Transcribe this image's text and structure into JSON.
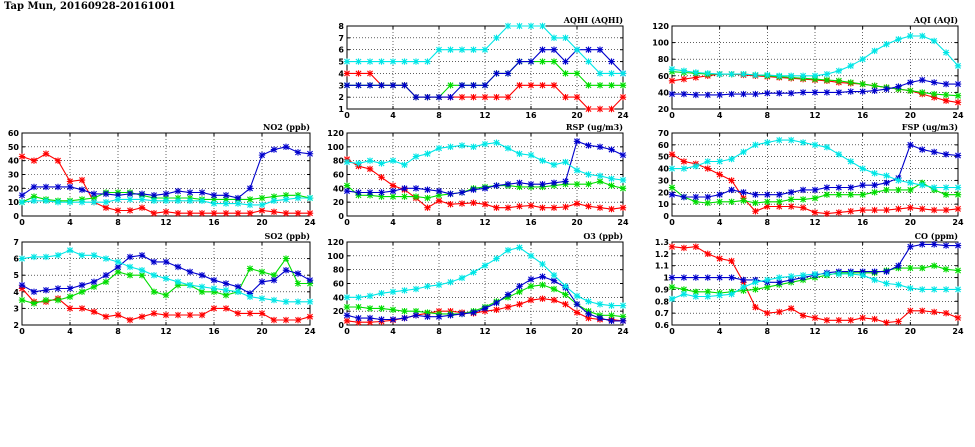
{
  "page": {
    "title": "Tap Mun, 20160928-20161001"
  },
  "series_colors": {
    "red": "#ff0000",
    "green": "#00dd00",
    "blue": "#0000cc",
    "cyan": "#00e6e6"
  },
  "chart_data": [
    {
      "id": "aqhi",
      "type": "line",
      "title": "AQHI (AQHI)",
      "xlim": [
        0,
        24
      ],
      "xticks": [
        0,
        4,
        8,
        12,
        16,
        20,
        24
      ],
      "ylim": [
        1,
        8
      ],
      "yticks": [
        1,
        2,
        3,
        4,
        5,
        6,
        7,
        8
      ],
      "grid": true,
      "series": [
        {
          "color": "red",
          "values": [
            4,
            4,
            4,
            3,
            3,
            3,
            2,
            2,
            2,
            2,
            2,
            2,
            2,
            2,
            2,
            3,
            3,
            3,
            3,
            2,
            2,
            1,
            1,
            1,
            2
          ]
        },
        {
          "color": "green",
          "values": [
            3,
            3,
            3,
            3,
            3,
            3,
            2,
            2,
            2,
            3,
            3,
            3,
            3,
            4,
            4,
            5,
            5,
            5,
            5,
            4,
            4,
            3,
            3,
            3,
            3
          ]
        },
        {
          "color": "blue",
          "values": [
            3,
            3,
            3,
            3,
            3,
            3,
            2,
            2,
            2,
            2,
            3,
            3,
            3,
            4,
            4,
            5,
            5,
            6,
            6,
            5,
            6,
            6,
            6,
            5,
            4
          ]
        },
        {
          "color": "cyan",
          "values": [
            5,
            5,
            5,
            5,
            5,
            5,
            5,
            5,
            6,
            6,
            6,
            6,
            6,
            7,
            8,
            8,
            8,
            8,
            7,
            7,
            6,
            5,
            4,
            4,
            4
          ]
        }
      ]
    },
    {
      "id": "aqi",
      "type": "line",
      "title": "AQI (AQI)",
      "xlim": [
        0,
        24
      ],
      "xticks": [
        0,
        4,
        8,
        12,
        16,
        20,
        24
      ],
      "ylim": [
        20,
        120
      ],
      "yticks": [
        20,
        40,
        60,
        80,
        100,
        120
      ],
      "grid": true,
      "series": [
        {
          "color": "red",
          "values": [
            54,
            56,
            58,
            60,
            62,
            62,
            61,
            60,
            59,
            58,
            57,
            56,
            55,
            54,
            52,
            51,
            50,
            48,
            46,
            44,
            42,
            38,
            34,
            30,
            28
          ]
        },
        {
          "color": "green",
          "values": [
            65,
            64,
            63,
            62,
            62,
            62,
            62,
            61,
            60,
            59,
            58,
            57,
            56,
            55,
            54,
            52,
            50,
            48,
            46,
            44,
            42,
            40,
            38,
            37,
            36
          ]
        },
        {
          "color": "blue",
          "values": [
            38,
            38,
            37,
            37,
            37,
            38,
            38,
            38,
            39,
            39,
            39,
            40,
            40,
            40,
            40,
            41,
            41,
            42,
            44,
            47,
            52,
            55,
            52,
            50,
            50
          ]
        },
        {
          "color": "cyan",
          "values": [
            68,
            66,
            64,
            63,
            62,
            62,
            62,
            61,
            61,
            60,
            60,
            60,
            60,
            62,
            66,
            72,
            80,
            90,
            98,
            104,
            108,
            108,
            102,
            88,
            72
          ]
        }
      ]
    },
    {
      "id": "no2",
      "type": "line",
      "title": "NO2 (ppb)",
      "xlim": [
        0,
        24
      ],
      "xticks": [
        0,
        4,
        8,
        12,
        16,
        20,
        24
      ],
      "ylim": [
        0,
        60
      ],
      "yticks": [
        0,
        10,
        20,
        30,
        40,
        50,
        60
      ],
      "grid": true,
      "series": [
        {
          "color": "red",
          "values": [
            43,
            40,
            45,
            40,
            25,
            26,
            10,
            6,
            4,
            4,
            6,
            2,
            3,
            2,
            2,
            2,
            2,
            2,
            2,
            2,
            4,
            3,
            2,
            2,
            2
          ]
        },
        {
          "color": "green",
          "values": [
            10,
            14,
            12,
            11,
            11,
            12,
            13,
            17,
            17,
            17,
            15,
            13,
            13,
            13,
            13,
            12,
            12,
            12,
            12,
            12,
            13,
            14,
            15,
            15,
            13
          ]
        },
        {
          "color": "blue",
          "values": [
            15,
            21,
            21,
            21,
            21,
            19,
            16,
            16,
            15,
            16,
            16,
            15,
            16,
            18,
            17,
            17,
            15,
            15,
            13,
            20,
            44,
            48,
            50,
            46,
            45
          ]
        },
        {
          "color": "cyan",
          "values": [
            10,
            11,
            11,
            10,
            10,
            10,
            10,
            10,
            12,
            12,
            12,
            11,
            11,
            11,
            11,
            11,
            9,
            9,
            9,
            8,
            8,
            11,
            12,
            13,
            13
          ]
        }
      ]
    },
    {
      "id": "rsp",
      "type": "line",
      "title": "RSP (ug/m3)",
      "xlim": [
        0,
        24
      ],
      "xticks": [
        0,
        4,
        8,
        12,
        16,
        20,
        24
      ],
      "ylim": [
        0,
        120
      ],
      "yticks": [
        0,
        20,
        40,
        60,
        80,
        100,
        120
      ],
      "grid": true,
      "series": [
        {
          "color": "red",
          "values": [
            82,
            72,
            68,
            56,
            44,
            38,
            26,
            12,
            22,
            17,
            18,
            19,
            17,
            12,
            12,
            14,
            15,
            12,
            12,
            13,
            18,
            14,
            12,
            10,
            12
          ]
        },
        {
          "color": "green",
          "values": [
            44,
            30,
            30,
            28,
            28,
            28,
            28,
            26,
            30,
            32,
            34,
            40,
            42,
            44,
            44,
            42,
            42,
            42,
            44,
            46,
            46,
            46,
            50,
            44,
            40
          ]
        },
        {
          "color": "blue",
          "values": [
            36,
            34,
            34,
            34,
            36,
            40,
            40,
            38,
            36,
            32,
            34,
            38,
            40,
            44,
            46,
            48,
            46,
            46,
            48,
            50,
            108,
            102,
            100,
            96,
            88
          ]
        },
        {
          "color": "cyan",
          "values": [
            78,
            76,
            80,
            76,
            80,
            74,
            86,
            90,
            98,
            100,
            102,
            100,
            104,
            106,
            98,
            90,
            88,
            80,
            74,
            78,
            66,
            60,
            58,
            54,
            52
          ]
        }
      ]
    },
    {
      "id": "fsp",
      "type": "line",
      "title": "FSP (ug/m3)",
      "xlim": [
        0,
        24
      ],
      "xticks": [
        0,
        4,
        8,
        12,
        16,
        20,
        24
      ],
      "ylim": [
        0,
        70
      ],
      "yticks": [
        0,
        10,
        20,
        30,
        40,
        50,
        60,
        70
      ],
      "grid": true,
      "series": [
        {
          "color": "red",
          "values": [
            52,
            46,
            44,
            40,
            35,
            30,
            15,
            4,
            8,
            8,
            8,
            7,
            3,
            2,
            3,
            4,
            5,
            5,
            5,
            6,
            7,
            6,
            5,
            5,
            6
          ]
        },
        {
          "color": "green",
          "values": [
            24,
            16,
            12,
            11,
            12,
            12,
            13,
            11,
            12,
            12,
            14,
            14,
            15,
            18,
            18,
            18,
            18,
            20,
            22,
            22,
            22,
            28,
            22,
            18,
            18
          ]
        },
        {
          "color": "blue",
          "values": [
            18,
            16,
            16,
            16,
            18,
            22,
            20,
            18,
            18,
            18,
            20,
            22,
            22,
            24,
            24,
            24,
            26,
            26,
            28,
            32,
            60,
            56,
            54,
            52,
            51
          ]
        },
        {
          "color": "cyan",
          "values": [
            40,
            40,
            42,
            46,
            46,
            48,
            54,
            60,
            62,
            64,
            64,
            62,
            60,
            58,
            52,
            46,
            40,
            36,
            34,
            30,
            28,
            26,
            24,
            24,
            24
          ]
        }
      ]
    },
    {
      "id": "so2",
      "type": "line",
      "title": "SO2 (ppb)",
      "xlim": [
        0,
        24
      ],
      "xticks": [
        0,
        4,
        8,
        12,
        16,
        20,
        24
      ],
      "ylim": [
        2,
        7
      ],
      "yticks": [
        2,
        3,
        4,
        5,
        6,
        7
      ],
      "grid": true,
      "series": [
        {
          "color": "red",
          "values": [
            4.2,
            3.4,
            3.4,
            3.6,
            3.0,
            3.0,
            2.8,
            2.5,
            2.6,
            2.3,
            2.5,
            2.7,
            2.6,
            2.6,
            2.6,
            2.6,
            3.0,
            3.0,
            2.7,
            2.7,
            2.7,
            2.3,
            2.3,
            2.3,
            2.5
          ]
        },
        {
          "color": "green",
          "values": [
            3.5,
            3.3,
            3.5,
            3.5,
            3.7,
            4.0,
            4.3,
            4.6,
            5.2,
            5.0,
            5.0,
            4.0,
            3.8,
            4.4,
            4.4,
            4.0,
            4.0,
            3.8,
            4.0,
            5.4,
            5.2,
            5.0,
            6.0,
            4.5,
            4.5
          ]
        },
        {
          "color": "blue",
          "values": [
            4.4,
            4.0,
            4.1,
            4.2,
            4.2,
            4.4,
            4.6,
            5.0,
            5.5,
            6.1,
            6.2,
            5.8,
            5.8,
            5.5,
            5.2,
            5.0,
            4.7,
            4.5,
            4.3,
            3.9,
            4.6,
            4.7,
            5.3,
            5.1,
            4.7
          ]
        },
        {
          "color": "cyan",
          "values": [
            6.0,
            6.1,
            6.1,
            6.2,
            6.5,
            6.2,
            6.2,
            6.0,
            5.8,
            5.5,
            5.3,
            5.0,
            4.8,
            4.6,
            4.4,
            4.3,
            4.2,
            4.1,
            4.0,
            3.7,
            3.6,
            3.5,
            3.4,
            3.4,
            3.4
          ]
        }
      ]
    },
    {
      "id": "o3",
      "type": "line",
      "title": "O3 (ppb)",
      "xlim": [
        0,
        24
      ],
      "xticks": [
        0,
        4,
        8,
        12,
        16,
        20,
        24
      ],
      "ylim": [
        0,
        120
      ],
      "yticks": [
        0,
        20,
        40,
        60,
        80,
        100,
        120
      ],
      "grid": true,
      "series": [
        {
          "color": "red",
          "values": [
            6,
            4,
            4,
            5,
            7,
            10,
            14,
            17,
            20,
            20,
            18,
            17,
            20,
            22,
            26,
            30,
            36,
            38,
            36,
            30,
            18,
            10,
            8,
            8,
            6
          ]
        },
        {
          "color": "green",
          "values": [
            26,
            26,
            24,
            24,
            22,
            20,
            20,
            18,
            16,
            16,
            16,
            20,
            26,
            34,
            40,
            48,
            56,
            58,
            52,
            44,
            30,
            20,
            14,
            14,
            12
          ]
        },
        {
          "color": "blue",
          "values": [
            14,
            10,
            10,
            8,
            8,
            10,
            14,
            12,
            12,
            14,
            16,
            18,
            24,
            32,
            44,
            56,
            66,
            70,
            64,
            54,
            30,
            16,
            10,
            6,
            6
          ]
        },
        {
          "color": "cyan",
          "values": [
            40,
            40,
            42,
            46,
            48,
            50,
            52,
            56,
            58,
            62,
            68,
            76,
            86,
            96,
            108,
            112,
            100,
            88,
            72,
            56,
            42,
            34,
            30,
            28,
            28
          ]
        }
      ]
    },
    {
      "id": "co",
      "type": "line",
      "title": "CO (ppm)",
      "xlim": [
        0,
        24
      ],
      "xticks": [
        0,
        4,
        8,
        12,
        16,
        20,
        24
      ],
      "ylim": [
        0.6,
        1.3
      ],
      "yticks": [
        0.6,
        0.7,
        0.8,
        0.9,
        1.0,
        1.1,
        1.2,
        1.3
      ],
      "grid": true,
      "series": [
        {
          "color": "red",
          "values": [
            1.26,
            1.25,
            1.26,
            1.2,
            1.16,
            1.14,
            0.96,
            0.75,
            0.7,
            0.71,
            0.74,
            0.68,
            0.66,
            0.64,
            0.64,
            0.64,
            0.66,
            0.65,
            0.62,
            0.63,
            0.72,
            0.72,
            0.71,
            0.7,
            0.66
          ]
        },
        {
          "color": "green",
          "values": [
            0.92,
            0.9,
            0.88,
            0.88,
            0.87,
            0.88,
            0.89,
            0.9,
            0.92,
            0.94,
            0.96,
            0.98,
            1.0,
            1.02,
            1.04,
            1.04,
            1.04,
            1.04,
            1.06,
            1.08,
            1.08,
            1.08,
            1.1,
            1.07,
            1.06
          ]
        },
        {
          "color": "blue",
          "values": [
            1.0,
            1.0,
            1.0,
            1.0,
            1.0,
            1.0,
            0.98,
            0.98,
            0.96,
            0.96,
            0.98,
            1.0,
            1.02,
            1.04,
            1.05,
            1.05,
            1.05,
            1.05,
            1.05,
            1.1,
            1.26,
            1.28,
            1.28,
            1.27,
            1.27
          ]
        },
        {
          "color": "cyan",
          "values": [
            0.82,
            0.86,
            0.84,
            0.84,
            0.85,
            0.86,
            0.92,
            0.96,
            0.98,
            1.0,
            1.01,
            1.02,
            1.03,
            1.03,
            1.03,
            1.03,
            1.02,
            0.98,
            0.95,
            0.94,
            0.91,
            0.9,
            0.9,
            0.9,
            0.9
          ]
        }
      ]
    }
  ]
}
